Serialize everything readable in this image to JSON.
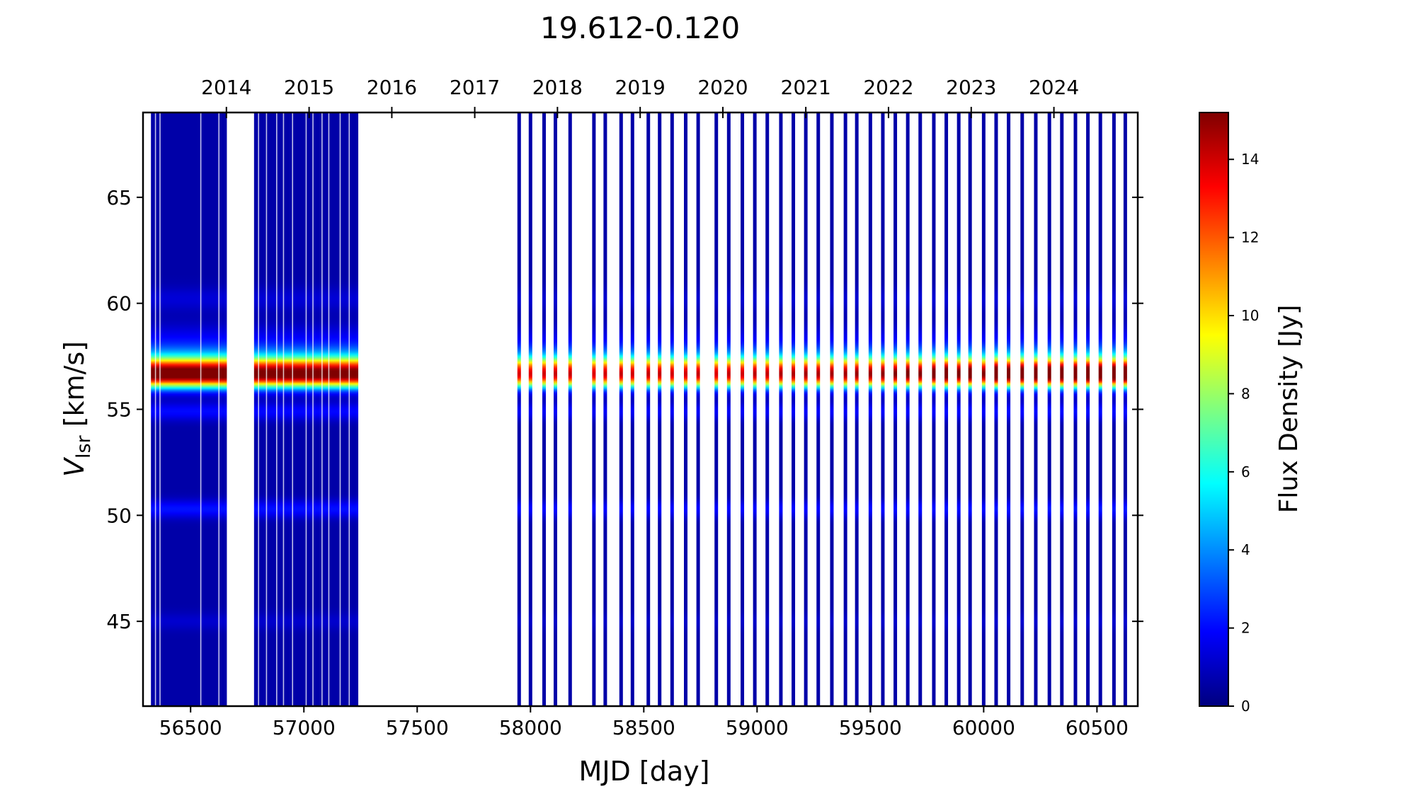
{
  "chart_data": {
    "type": "heatmap",
    "title": "19.612-0.120",
    "xlabel": "MJD [day]",
    "ylabel_main": "V",
    "ylabel_sub": "lsr",
    "ylabel_unit": " [km/s]",
    "colorbar_label": "Flux Density [Jy]",
    "colormap": "jet",
    "xlim": [
      56290,
      60680
    ],
    "ylim": [
      41,
      69
    ],
    "clim": [
      0,
      15.2
    ],
    "x_ticks": [
      56500,
      57000,
      57500,
      58000,
      58500,
      59000,
      59500,
      60000,
      60500
    ],
    "x_tick_labels": [
      "56500",
      "57000",
      "57500",
      "58000",
      "58500",
      "59000",
      "59500",
      "60000",
      "60500"
    ],
    "y_ticks": [
      45,
      50,
      55,
      60,
      65
    ],
    "y_tick_labels": [
      "45",
      "50",
      "55",
      "60",
      "65"
    ],
    "colorbar_ticks": [
      0,
      2,
      4,
      6,
      8,
      10,
      12,
      14
    ],
    "colorbar_tick_labels": [
      "0",
      "2",
      "4",
      "6",
      "8",
      "10",
      "12",
      "14"
    ],
    "top_axis": {
      "ticks": [
        56658,
        57023,
        57388,
        57754,
        58119,
        58484,
        58849,
        59215,
        59580,
        59945,
        60310
      ],
      "labels": [
        "2014",
        "2015",
        "2016",
        "2017",
        "2018",
        "2019",
        "2020",
        "2021",
        "2022",
        "2023",
        "2024"
      ]
    },
    "dense_segments": [
      {
        "start": 56325,
        "end": 56660,
        "peak_scale": 0.93
      },
      {
        "start": 56780,
        "end": 57240,
        "peak_scale": 0.9
      }
    ],
    "dense_segment_gaps": [
      56345,
      56365,
      56545,
      56625,
      56800,
      56835,
      56880,
      56910,
      56950,
      57010,
      57040,
      57080,
      57110,
      57160,
      57200
    ],
    "observation_epochs": [
      57950,
      58000,
      58060,
      58110,
      58175,
      58280,
      58330,
      58400,
      58450,
      58520,
      58570,
      58625,
      58685,
      58740,
      58820,
      58875,
      58935,
      58990,
      59045,
      59105,
      59160,
      59215,
      59270,
      59330,
      59390,
      59440,
      59500,
      59555,
      59610,
      59665,
      59720,
      59780,
      59835,
      59890,
      59940,
      60000,
      60055,
      60110,
      60170,
      60230,
      60290,
      60345,
      60405,
      60460,
      60515,
      60575,
      60625
    ],
    "observation_peak_scale": [
      0.78,
      0.78,
      0.79,
      0.8,
      0.8,
      0.78,
      0.79,
      0.8,
      0.79,
      0.8,
      0.8,
      0.79,
      0.79,
      0.8,
      0.78,
      0.8,
      0.79,
      0.81,
      0.8,
      0.82,
      0.82,
      0.83,
      0.82,
      0.83,
      0.83,
      0.84,
      0.84,
      0.85,
      0.86,
      0.88,
      0.86,
      0.9,
      0.93,
      0.88,
      0.92,
      0.86,
      0.97,
      0.93,
      0.94,
      0.95,
      0.96,
      0.95,
      0.96,
      0.97,
      0.96,
      0.97,
      0.98
    ],
    "spectral_profile": {
      "peak_flux": 15.2,
      "components": [
        {
          "v": 56.55,
          "width": 0.38,
          "amp": 1.0
        },
        {
          "v": 57.1,
          "width": 0.3,
          "amp": 0.45
        },
        {
          "v": 57.6,
          "width": 0.35,
          "amp": 0.18
        },
        {
          "v": 58.3,
          "width": 0.5,
          "amp": 0.08
        },
        {
          "v": 54.9,
          "width": 0.3,
          "amp": 0.1
        },
        {
          "v": 50.3,
          "width": 0.3,
          "amp": 0.11
        },
        {
          "v": 60.2,
          "width": 0.4,
          "amp": 0.05
        },
        {
          "v": 45.0,
          "width": 0.3,
          "amp": 0.04
        }
      ],
      "background": 0.6
    }
  }
}
